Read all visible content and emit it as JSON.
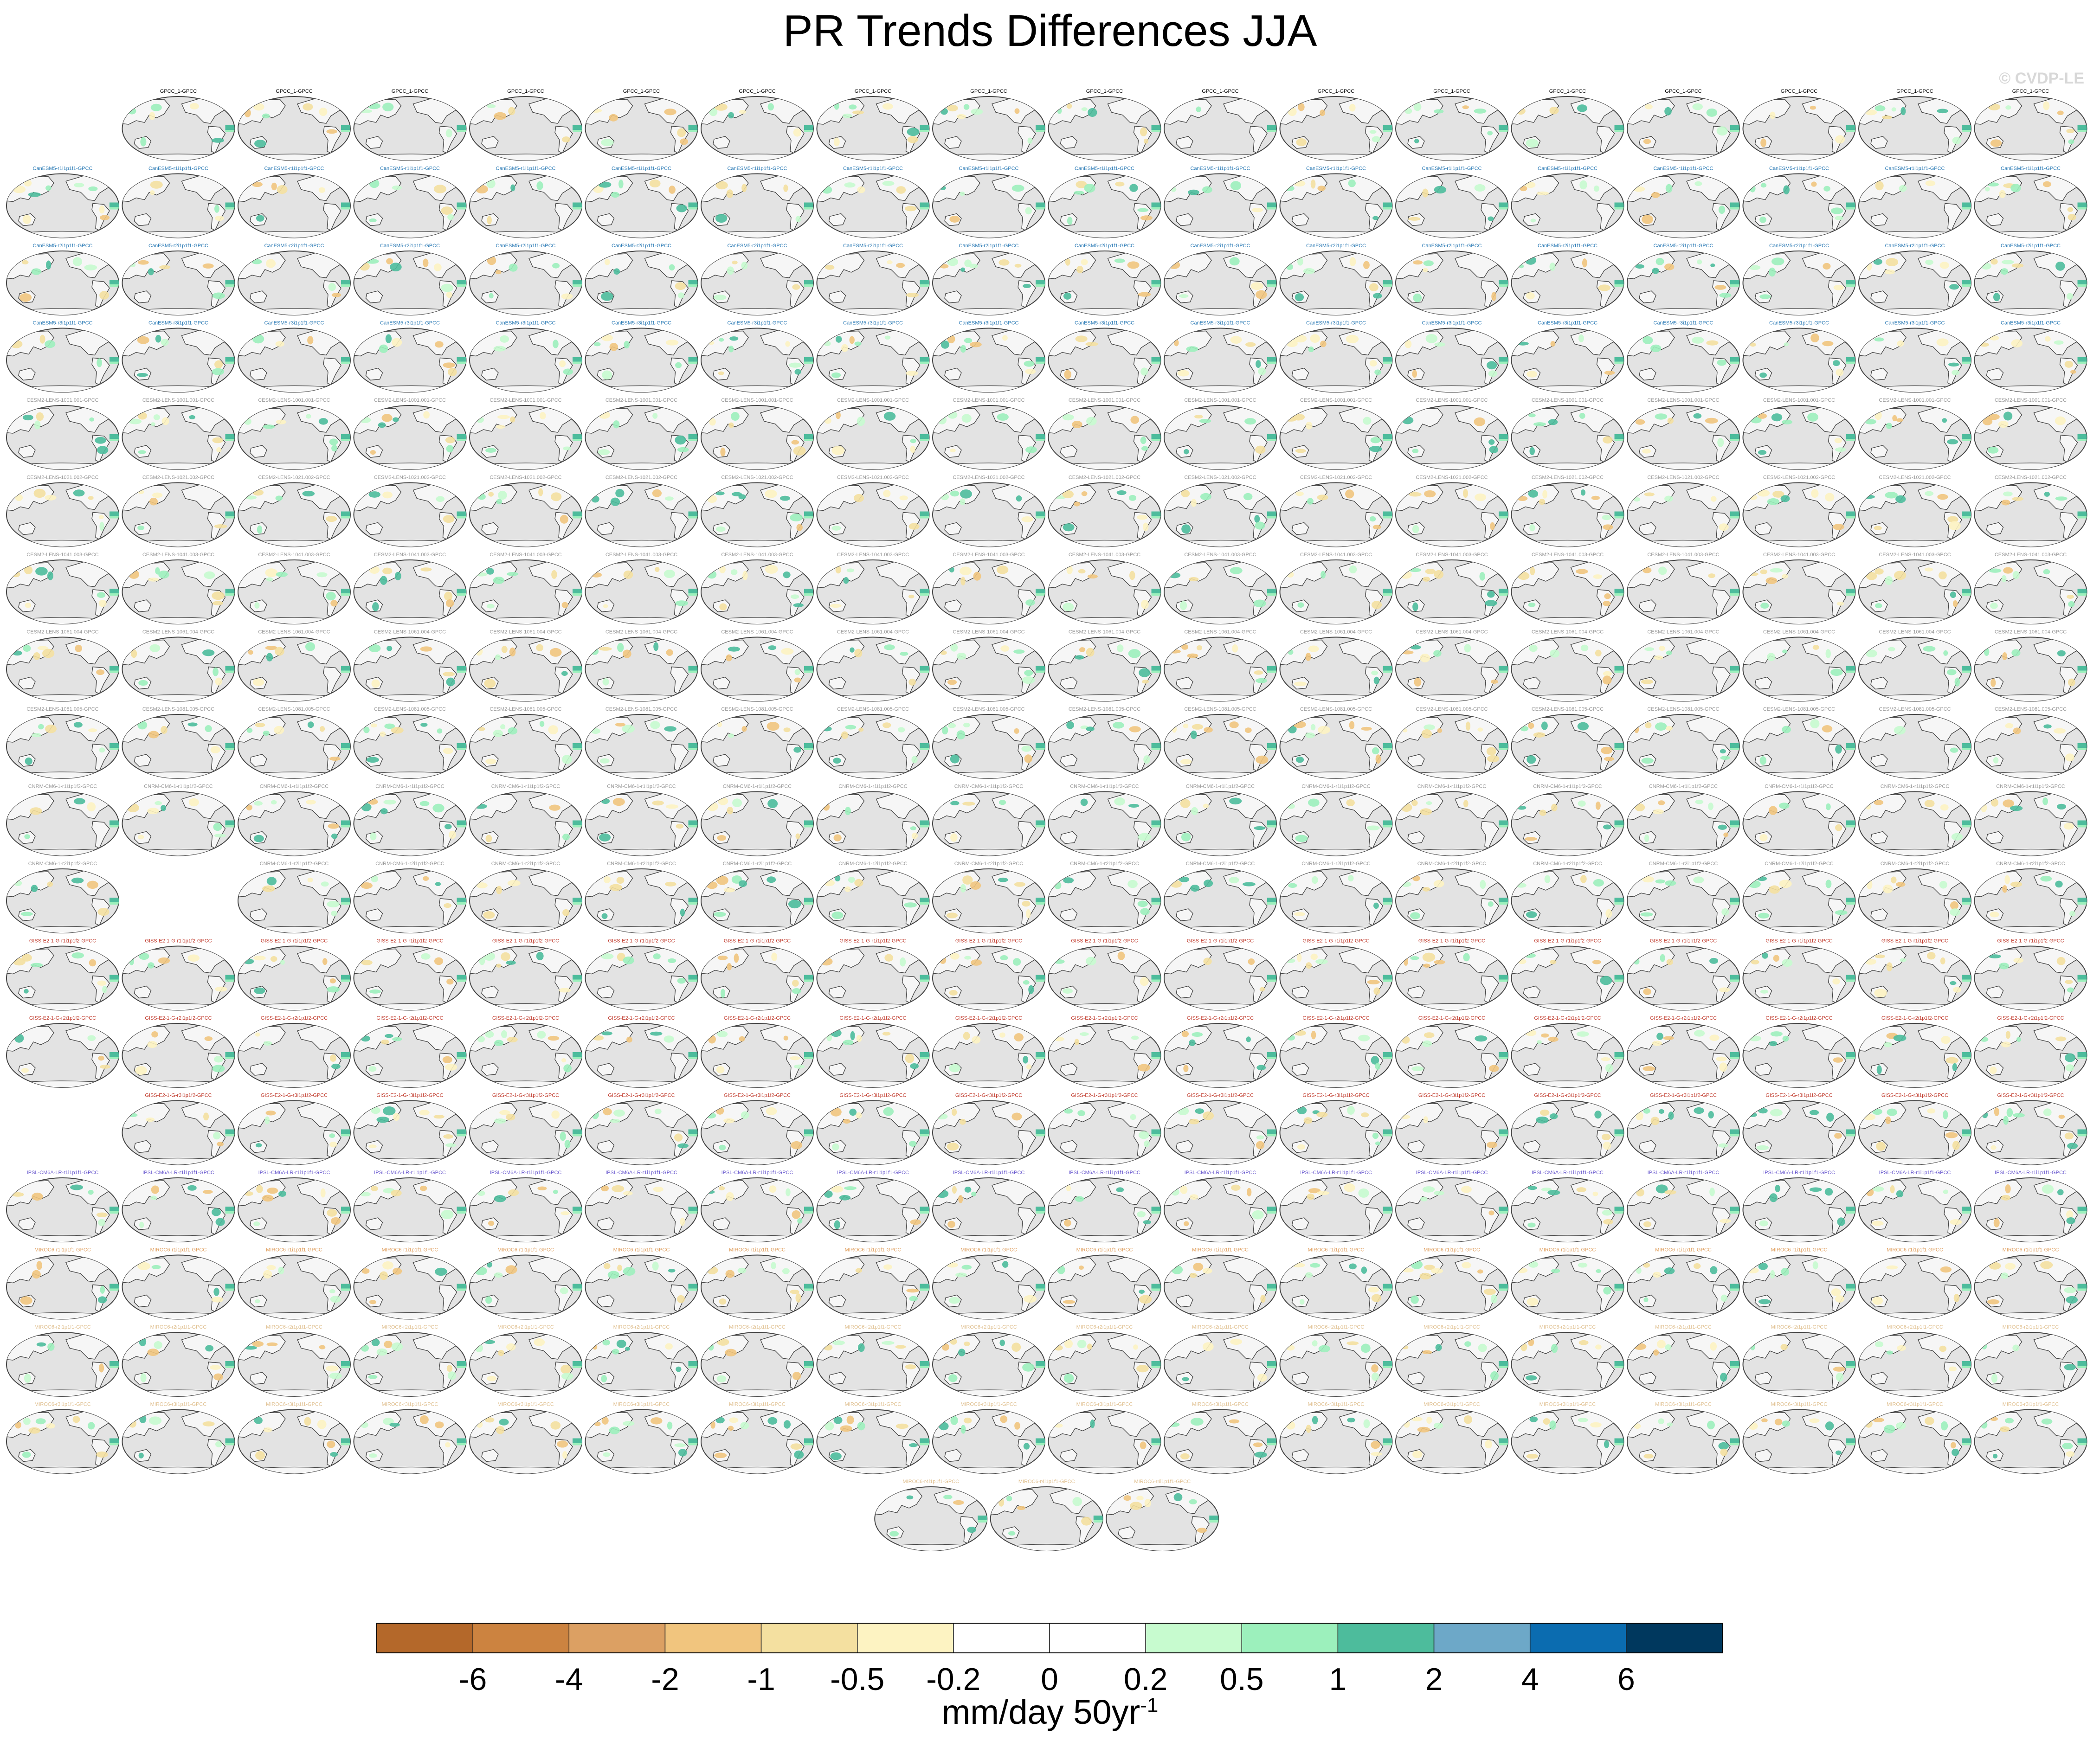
{
  "title": "PR Trends Differences JJA",
  "watermark": "© CVDP-LE",
  "chart_data": {
    "type": "heatmap",
    "title": "PR Trends Differences JJA",
    "description_panels": "Small-multiples grid of global map panels (model ensemble member minus GPCC)",
    "panel_rows": [
      {
        "count": 17,
        "first_col": 1,
        "label_color": "#000000",
        "label": "GPCC_1-GPCC"
      },
      {
        "count": 18,
        "first_col": 0,
        "label_color": "#2a7ab5",
        "label": "CanESM5-r1i1p1f1-GPCC"
      },
      {
        "count": 18,
        "first_col": 0,
        "label_color": "#2a7ab5",
        "label": "CanESM5-r2i1p1f1-GPCC"
      },
      {
        "count": 18,
        "first_col": 0,
        "label_color": "#2a7ab5",
        "label": "CanESM5-r3i1p1f1-GPCC"
      },
      {
        "count": 18,
        "first_col": 0,
        "label_color": "#999999",
        "label": "CESM2-LENS-1001.001-GPCC"
      },
      {
        "count": 18,
        "first_col": 0,
        "label_color": "#999999",
        "label": "CESM2-LENS-1021.002-GPCC"
      },
      {
        "count": 18,
        "first_col": 0,
        "label_color": "#999999",
        "label": "CESM2-LENS-1041.003-GPCC"
      },
      {
        "count": 18,
        "first_col": 0,
        "label_color": "#999999",
        "label": "CESM2-LENS-1061.004-GPCC"
      },
      {
        "count": 18,
        "first_col": 0,
        "label_color": "#999999",
        "label": "CESM2-LENS-1081.005-GPCC"
      },
      {
        "count": 18,
        "first_col": 0,
        "label_color": "#999999",
        "label": "CNRM-CM6-1-r1i1p1f2-GPCC"
      },
      {
        "count": 17,
        "first_col": 0,
        "skip_col": 1,
        "label_color": "#999999",
        "label": "CNRM-CM6-1-r2i1p1f2-GPCC"
      },
      {
        "count": 18,
        "first_col": 0,
        "label_color": "#c0392b",
        "label": "GISS-E2-1-G-r1i1p1f2-GPCC"
      },
      {
        "count": 18,
        "first_col": 0,
        "label_color": "#c0392b",
        "label": "GISS-E2-1-G-r2i1p1f2-GPCC"
      },
      {
        "count": 17,
        "first_col": 1,
        "label_color": "#c0392b",
        "label": "GISS-E2-1-G-r3i1p1f2-GPCC"
      },
      {
        "count": 18,
        "first_col": 0,
        "label_color": "#6c5ccf",
        "label": "IPSL-CM6A-LR-r1i1p1f1-GPCC"
      },
      {
        "count": 18,
        "first_col": 0,
        "label_color": "#e0a060",
        "label": "MIROC6-r1i1p1f1-GPCC"
      },
      {
        "count": 18,
        "first_col": 0,
        "label_color": "#e0c090",
        "label": "MIROC6-r2i1p1f1-GPCC"
      },
      {
        "count": 18,
        "first_col": 0,
        "label_color": "#e0c090",
        "label": "MIROC6-r3i1p1f1-GPCC"
      },
      {
        "count": 3,
        "first_col": 7.5,
        "label_color": "#e0c090",
        "label": "MIROC6-r4i1p1f1-GPCC"
      }
    ],
    "colorbar": {
      "colors": [
        "#b4682a",
        "#cc8340",
        "#dca063",
        "#f1c57e",
        "#f4e0a0",
        "#fdf3c2",
        "#ffffff",
        "#ffffff",
        "#c7fbcf",
        "#9cf0bc",
        "#4dbc9c",
        "#6da8c8",
        "#0b6cb0",
        "#00385e"
      ],
      "tick_labels": [
        "-6",
        "-4",
        "-2",
        "-1",
        "-0.5",
        "-0.2",
        "0",
        "0.2",
        "0.5",
        "1",
        "2",
        "4",
        "6"
      ]
    },
    "units_label": "mm/day 50yr",
    "units_exponent": "-1"
  }
}
